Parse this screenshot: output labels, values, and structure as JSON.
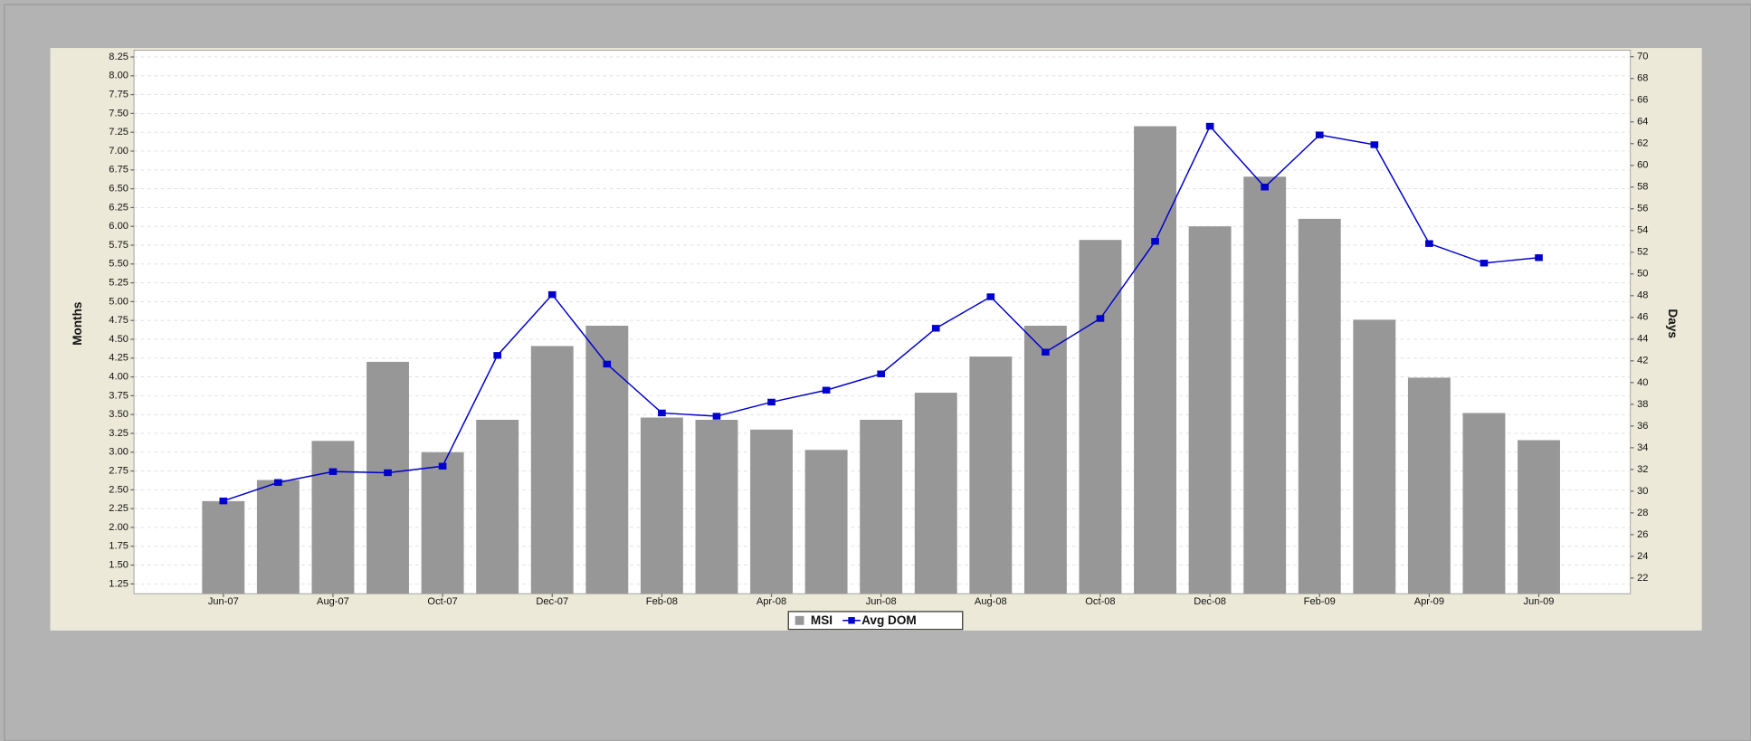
{
  "chart_data": {
    "type": "bar-line",
    "y_label": "Months",
    "y2_label": "Days",
    "categories": [
      "Jun-07",
      null,
      "Aug-07",
      null,
      "Oct-07",
      null,
      "Dec-07",
      null,
      "Feb-08",
      null,
      "Apr-08",
      null,
      "Jun-08",
      null,
      "Aug-08",
      null,
      "Oct-08",
      null,
      "Dec-08",
      null,
      "Feb-09",
      null,
      "Apr-09",
      null,
      "Jun-09"
    ],
    "series": [
      {
        "name": "MSI",
        "type": "bar",
        "color": "#979797",
        "axis": "y",
        "values": [
          2.35,
          2.63,
          3.15,
          4.2,
          3.0,
          3.43,
          4.41,
          4.68,
          3.46,
          3.43,
          3.3,
          3.03,
          3.43,
          3.79,
          4.27,
          4.68,
          5.82,
          7.33,
          6.0,
          6.66,
          6.1,
          4.76,
          3.99,
          3.52,
          3.16
        ]
      },
      {
        "name": "Avg DOM",
        "type": "line",
        "color": "#0000cc",
        "axis": "y2",
        "values": [
          29.1,
          30.8,
          31.8,
          31.7,
          32.3,
          42.5,
          48.1,
          41.7,
          37.2,
          36.9,
          38.2,
          39.3,
          40.8,
          45.0,
          47.9,
          42.8,
          45.9,
          53.0,
          63.6,
          58.0,
          62.8,
          61.9,
          52.8,
          51.0,
          51.5
        ]
      }
    ],
    "ylim": [
      1.12,
      8.34
    ],
    "yticks": [
      {
        "value": 1.25,
        "label": "1.25"
      },
      {
        "value": 1.5,
        "label": "1.50"
      },
      {
        "value": 1.75,
        "label": "1.75"
      },
      {
        "value": 2,
        "label": "2.00"
      },
      {
        "value": 2.25,
        "label": "2.25"
      },
      {
        "value": 2.5,
        "label": "2.50"
      },
      {
        "value": 2.75,
        "label": "2.75"
      },
      {
        "value": 3,
        "label": "3.00"
      },
      {
        "value": 3.25,
        "label": "3.25"
      },
      {
        "value": 3.5,
        "label": "3.50"
      },
      {
        "value": 3.75,
        "label": "3.75"
      },
      {
        "value": 4,
        "label": "4.00"
      },
      {
        "value": 4.25,
        "label": "4.25"
      },
      {
        "value": 4.5,
        "label": "4.50"
      },
      {
        "value": 4.75,
        "label": "4.75"
      },
      {
        "value": 5,
        "label": "5.00"
      },
      {
        "value": 5.25,
        "label": "5.25"
      },
      {
        "value": 5.5,
        "label": "5.50"
      },
      {
        "value": 5.75,
        "label": "5.75"
      },
      {
        "value": 6,
        "label": "6.00"
      },
      {
        "value": 6.25,
        "label": "6.25"
      },
      {
        "value": 6.5,
        "label": "6.50"
      },
      {
        "value": 6.75,
        "label": "6.75"
      },
      {
        "value": 7,
        "label": "7.00"
      },
      {
        "value": 7.25,
        "label": "7.25"
      },
      {
        "value": 7.5,
        "label": "7.50"
      },
      {
        "value": 7.75,
        "label": "7.75"
      },
      {
        "value": 8,
        "label": "8.00"
      },
      {
        "value": 8.25,
        "label": "8.25"
      }
    ],
    "y2lim": [
      20.56,
      70.6
    ],
    "y2ticks": [
      22,
      24,
      26,
      28,
      30,
      32,
      34,
      36,
      38,
      40,
      42,
      44,
      46,
      48,
      50,
      52,
      54,
      56,
      58,
      60,
      62,
      64,
      66,
      68,
      70
    ],
    "grid": true,
    "legend": "bottom"
  }
}
